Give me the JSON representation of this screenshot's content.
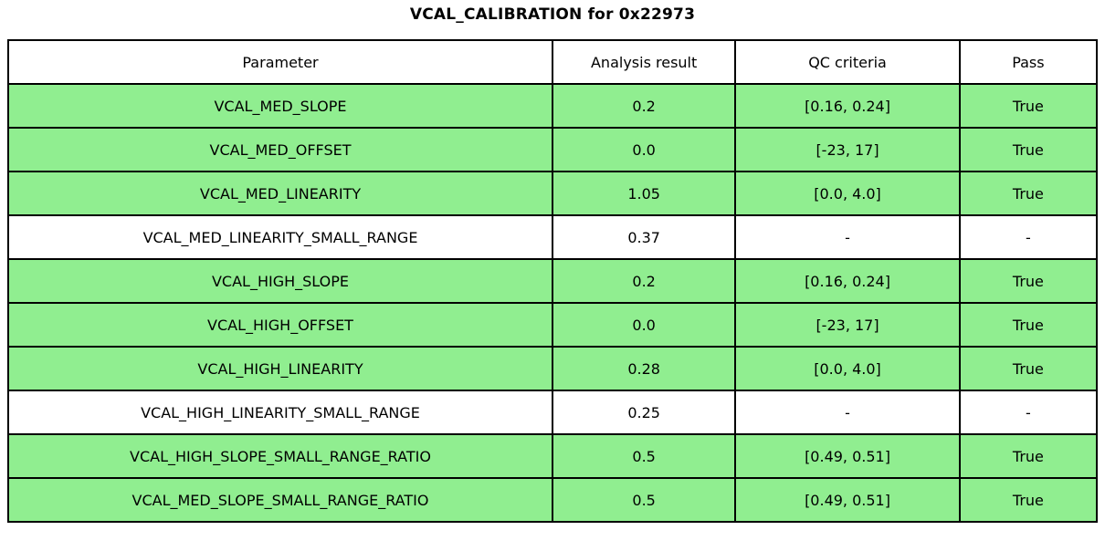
{
  "title": "VCAL_CALIBRATION for 0x22973",
  "colors": {
    "pass_row_background": "#90EE90",
    "neutral_row_background": "#ffffff",
    "border": "#000000",
    "text": "#000000"
  },
  "chart_data": {
    "type": "table",
    "title": "VCAL_CALIBRATION for 0x22973",
    "columns": [
      "Parameter",
      "Analysis result",
      "QC criteria",
      "Pass"
    ],
    "rows": [
      {
        "parameter": "VCAL_MED_SLOPE",
        "analysis_result": "0.2",
        "qc_criteria": "[0.16, 0.24]",
        "pass": "True",
        "highlight": true
      },
      {
        "parameter": "VCAL_MED_OFFSET",
        "analysis_result": "0.0",
        "qc_criteria": "[-23, 17]",
        "pass": "True",
        "highlight": true
      },
      {
        "parameter": "VCAL_MED_LINEARITY",
        "analysis_result": "1.05",
        "qc_criteria": "[0.0, 4.0]",
        "pass": "True",
        "highlight": true
      },
      {
        "parameter": "VCAL_MED_LINEARITY_SMALL_RANGE",
        "analysis_result": "0.37",
        "qc_criteria": "-",
        "pass": "-",
        "highlight": false
      },
      {
        "parameter": "VCAL_HIGH_SLOPE",
        "analysis_result": "0.2",
        "qc_criteria": "[0.16, 0.24]",
        "pass": "True",
        "highlight": true
      },
      {
        "parameter": "VCAL_HIGH_OFFSET",
        "analysis_result": "0.0",
        "qc_criteria": "[-23, 17]",
        "pass": "True",
        "highlight": true
      },
      {
        "parameter": "VCAL_HIGH_LINEARITY",
        "analysis_result": "0.28",
        "qc_criteria": "[0.0, 4.0]",
        "pass": "True",
        "highlight": true
      },
      {
        "parameter": "VCAL_HIGH_LINEARITY_SMALL_RANGE",
        "analysis_result": "0.25",
        "qc_criteria": "-",
        "pass": "-",
        "highlight": false
      },
      {
        "parameter": "VCAL_HIGH_SLOPE_SMALL_RANGE_RATIO",
        "analysis_result": "0.5",
        "qc_criteria": "[0.49, 0.51]",
        "pass": "True",
        "highlight": true
      },
      {
        "parameter": "VCAL_MED_SLOPE_SMALL_RANGE_RATIO",
        "analysis_result": "0.5",
        "qc_criteria": "[0.49, 0.51]",
        "pass": "True",
        "highlight": true
      }
    ]
  }
}
